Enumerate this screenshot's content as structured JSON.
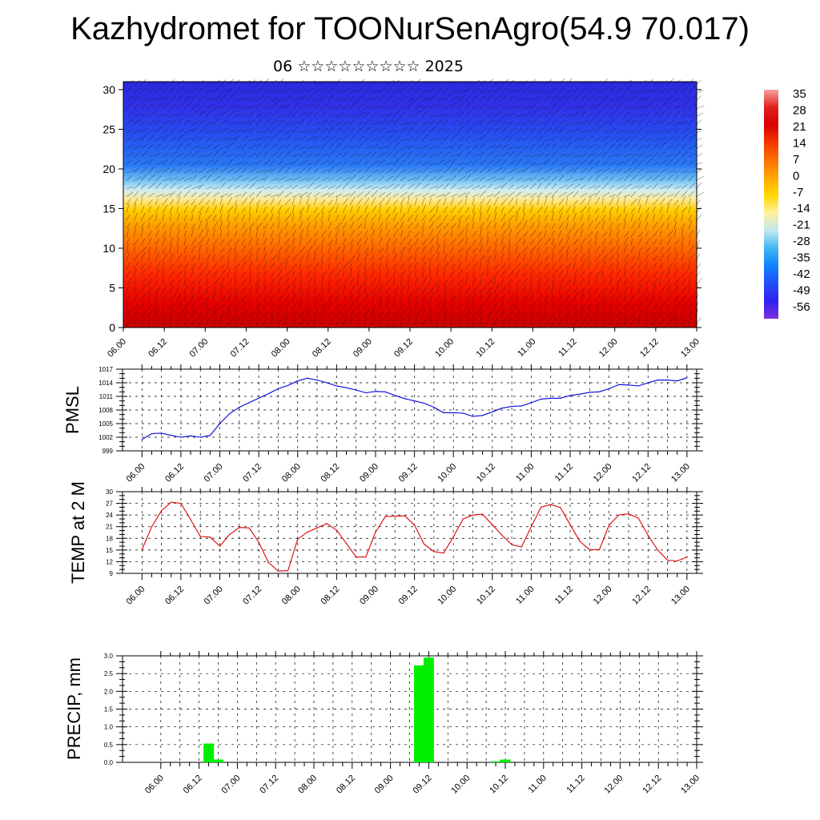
{
  "header": {
    "title": "Kazhydromet for TOONurSenAgro(54.9 70.017)",
    "subtitle": "06 ☆☆☆☆☆☆☆☆☆ 2025"
  },
  "time_ticks": [
    "06.00",
    "06.12",
    "07.00",
    "07.12",
    "08.00",
    "08.12",
    "09.00",
    "09.12",
    "10.00",
    "10.12",
    "11.00",
    "11.12",
    "12.00",
    "12.12",
    "13.00"
  ],
  "colors": {
    "pmsl_line": "#0000dd",
    "temp_line": "#dd0000",
    "precip_bar": "#00ee00",
    "grid": "#000000"
  },
  "chart_data": [
    {
      "type": "heatmap",
      "title": "",
      "y_ticks": [
        0,
        5,
        10,
        15,
        20,
        25,
        30
      ],
      "ylim": [
        0,
        31
      ],
      "x_categories": [
        "06.00",
        "06.12",
        "07.00",
        "07.12",
        "08.00",
        "08.12",
        "09.00",
        "09.12",
        "10.00",
        "10.12",
        "11.00",
        "11.12",
        "12.00",
        "12.12",
        "13.00"
      ],
      "colorbar": {
        "labels": [
          "35",
          "28",
          "21",
          "14",
          "7",
          "0",
          "-7",
          "-14",
          "-21",
          "-28",
          "-35",
          "-42",
          "-49",
          "-56"
        ],
        "colors": [
          "#f7a0a0",
          "#e02020",
          "#d80000",
          "#f23800",
          "#ff7000",
          "#ffa800",
          "#ffd800",
          "#fff0a0",
          "#c0e8f0",
          "#40b8f0",
          "#1080ff",
          "#2050f8",
          "#3020f0",
          "#8030e0"
        ]
      },
      "overlay": "wind barbs"
    },
    {
      "type": "line",
      "ylabel": "PMSL",
      "y_ticks": [
        999,
        1002,
        1005,
        1008,
        1011,
        1014,
        1017
      ],
      "ylim": [
        999,
        1017
      ],
      "grid": true,
      "x_tick_labels": [
        "06.00",
        "06.12",
        "07.00",
        "07.12",
        "08.00",
        "08.12",
        "09.00",
        "09.12",
        "10.00",
        "10.12",
        "11.00",
        "11.12",
        "12.00",
        "12.12",
        "13.00"
      ],
      "x_hours": [
        0,
        3,
        6,
        9,
        12,
        15,
        18,
        21,
        24,
        27,
        30,
        33,
        36,
        39,
        42,
        45,
        48,
        51,
        54,
        57,
        60,
        63,
        66,
        69,
        72,
        75,
        78,
        81,
        84,
        87,
        90,
        93,
        96,
        99,
        102,
        105,
        108,
        111,
        114,
        117,
        120,
        123,
        126,
        129,
        132,
        135,
        138,
        141,
        144,
        147,
        150,
        153,
        156,
        159,
        162,
        165,
        168
      ],
      "series": [
        {
          "name": "",
          "values": [
            1001.5,
            1002.8,
            1002.9,
            1002.4,
            1002.0,
            1002.3,
            1002.0,
            1002.4,
            1005.0,
            1007.2,
            1008.6,
            1009.6,
            1010.6,
            1011.6,
            1012.7,
            1013.4,
            1014.4,
            1015.0,
            1014.6,
            1014.0,
            1013.3,
            1012.9,
            1012.4,
            1011.8,
            1012.1,
            1012.0,
            1011.2,
            1010.5,
            1010.0,
            1009.5,
            1008.6,
            1007.4,
            1007.4,
            1007.3,
            1006.6,
            1006.8,
            1007.6,
            1008.4,
            1008.8,
            1008.9,
            1009.6,
            1010.4,
            1010.6,
            1010.6,
            1011.2,
            1011.5,
            1011.9,
            1012.0,
            1012.7,
            1013.6,
            1013.5,
            1013.3,
            1014.0,
            1014.6,
            1014.6,
            1014.4,
            1015.1
          ]
        }
      ]
    },
    {
      "type": "line",
      "ylabel": "TEMP at 2 M",
      "y_ticks": [
        9,
        12,
        15,
        18,
        21,
        24,
        27,
        30
      ],
      "ylim": [
        9,
        30
      ],
      "grid": true,
      "x_tick_labels": [
        "06.00",
        "06.12",
        "07.00",
        "07.12",
        "08.00",
        "08.12",
        "09.00",
        "09.12",
        "10.00",
        "10.12",
        "11.00",
        "11.12",
        "12.00",
        "12.12",
        "13.00"
      ],
      "x_hours": [
        0,
        3,
        6,
        9,
        12,
        15,
        18,
        21,
        24,
        27,
        30,
        33,
        36,
        39,
        42,
        45,
        48,
        51,
        54,
        57,
        60,
        63,
        66,
        69,
        72,
        75,
        78,
        81,
        84,
        87,
        90,
        93,
        96,
        99,
        102,
        105,
        108,
        111,
        114,
        117,
        120,
        123,
        126,
        129,
        132,
        135,
        138,
        141,
        144,
        147,
        150,
        153,
        156,
        159,
        162,
        165,
        168
      ],
      "series": [
        {
          "name": "",
          "values": [
            15.1,
            21.0,
            25.1,
            27.3,
            27.0,
            22.8,
            18.5,
            18.3,
            16.0,
            19.0,
            20.8,
            20.7,
            17.0,
            11.8,
            9.6,
            9.7,
            17.8,
            19.6,
            20.7,
            21.8,
            20.1,
            16.7,
            13.2,
            13.2,
            19.6,
            23.6,
            23.7,
            23.8,
            21.4,
            16.5,
            14.6,
            14.2,
            18.4,
            23.0,
            24.0,
            24.2,
            21.5,
            18.8,
            16.4,
            15.8,
            21.0,
            26.0,
            26.7,
            25.9,
            21.5,
            17.2,
            15.1,
            15.1,
            21.4,
            24.0,
            24.3,
            23.2,
            18.8,
            15.0,
            12.4,
            12.2,
            13.2
          ]
        }
      ]
    },
    {
      "type": "bar",
      "ylabel": "PRECIP, mm",
      "y_ticks": [
        "0.0",
        "0.5",
        "1.0",
        "1.5",
        "2.0",
        "2.5",
        "3.0"
      ],
      "ylim": [
        0,
        3.0
      ],
      "grid": true,
      "x_tick_labels": [
        "06.00",
        "06.12",
        "07.00",
        "07.12",
        "08.00",
        "08.12",
        "09.00",
        "09.12",
        "10.00",
        "10.12",
        "11.00",
        "11.12",
        "12.00",
        "12.12",
        "13.00"
      ],
      "bars": [
        {
          "x_hour": 15,
          "value": 0.53
        },
        {
          "x_hour": 18,
          "value": 0.08
        },
        {
          "x_hour": 81,
          "value": 2.73
        },
        {
          "x_hour": 84,
          "value": 2.95
        },
        {
          "x_hour": 105,
          "value": 0.03
        },
        {
          "x_hour": 108,
          "value": 0.08
        }
      ]
    }
  ]
}
